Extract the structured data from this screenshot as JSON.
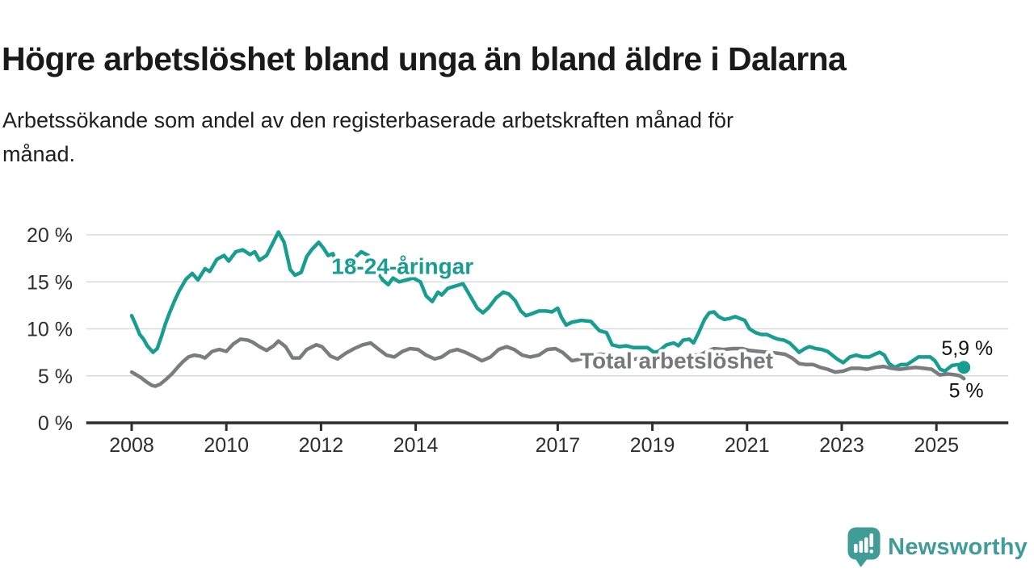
{
  "header": {
    "title": "Högre arbetslöshet bland unga än bland äldre i Dalarna",
    "subtitle_line1": "Arbetssökande som andel av den registerbaserade arbetskraften månad för",
    "subtitle_line2": "månad."
  },
  "chart_data": {
    "type": "line",
    "title": "Högre arbetslöshet bland unga än bland äldre i Dalarna",
    "xlabel": "",
    "ylabel": "",
    "grid": "horizontal",
    "x_axis": {
      "range": [
        2007.04,
        2026.52
      ],
      "ticks": [
        {
          "v": 2008,
          "label": "2008"
        },
        {
          "v": 2010,
          "label": "2010"
        },
        {
          "v": 2012,
          "label": "2012"
        },
        {
          "v": 2014,
          "label": "2014"
        },
        {
          "v": 2017,
          "label": "2017"
        },
        {
          "v": 2019,
          "label": "2019"
        },
        {
          "v": 2021,
          "label": "2021"
        },
        {
          "v": 2023,
          "label": "2023"
        },
        {
          "v": 2025,
          "label": "2025"
        }
      ]
    },
    "y_axis": {
      "range": [
        0,
        21
      ],
      "unit": "%",
      "ticks": [
        {
          "v": 0,
          "label": "0 %"
        },
        {
          "v": 5,
          "label": "5 %"
        },
        {
          "v": 10,
          "label": "10 %"
        },
        {
          "v": 15,
          "label": "15 %"
        },
        {
          "v": 20,
          "label": "20 %"
        }
      ]
    },
    "series": [
      {
        "name": "18-24-åringar",
        "color": "#189e90",
        "end_dot": true,
        "end_value_label": "5,9 %",
        "points": [
          [
            2008.0,
            11.4
          ],
          [
            2008.08,
            10.5
          ],
          [
            2008.17,
            9.4
          ],
          [
            2008.25,
            8.9
          ],
          [
            2008.33,
            8.2
          ],
          [
            2008.45,
            7.5
          ],
          [
            2008.54,
            7.9
          ],
          [
            2008.63,
            9.2
          ],
          [
            2008.71,
            10.5
          ],
          [
            2008.8,
            11.7
          ],
          [
            2008.9,
            12.9
          ],
          [
            2009.0,
            14.0
          ],
          [
            2009.15,
            15.3
          ],
          [
            2009.28,
            15.9
          ],
          [
            2009.4,
            15.2
          ],
          [
            2009.55,
            16.4
          ],
          [
            2009.65,
            16.1
          ],
          [
            2009.8,
            17.4
          ],
          [
            2009.95,
            17.8
          ],
          [
            2010.05,
            17.2
          ],
          [
            2010.2,
            18.2
          ],
          [
            2010.35,
            18.4
          ],
          [
            2010.5,
            17.9
          ],
          [
            2010.6,
            18.2
          ],
          [
            2010.7,
            17.3
          ],
          [
            2010.85,
            17.8
          ],
          [
            2011.0,
            19.3
          ],
          [
            2011.1,
            20.3
          ],
          [
            2011.22,
            19.2
          ],
          [
            2011.35,
            16.3
          ],
          [
            2011.45,
            15.7
          ],
          [
            2011.58,
            16.0
          ],
          [
            2011.7,
            17.7
          ],
          [
            2011.8,
            18.4
          ],
          [
            2011.95,
            19.2
          ],
          [
            2012.05,
            18.6
          ],
          [
            2012.15,
            17.8
          ],
          [
            2012.25,
            18.0
          ],
          [
            2012.4,
            16.0
          ],
          [
            2012.55,
            16.8
          ],
          [
            2012.7,
            17.5
          ],
          [
            2012.85,
            18.2
          ],
          [
            2013.0,
            17.8
          ],
          [
            2013.15,
            16.5
          ],
          [
            2013.3,
            15.2
          ],
          [
            2013.42,
            14.7
          ],
          [
            2013.52,
            15.4
          ],
          [
            2013.65,
            15.0
          ],
          [
            2013.8,
            15.2
          ],
          [
            2013.95,
            15.4
          ],
          [
            2014.1,
            15.0
          ],
          [
            2014.22,
            13.5
          ],
          [
            2014.35,
            12.9
          ],
          [
            2014.47,
            13.9
          ],
          [
            2014.55,
            13.6
          ],
          [
            2014.68,
            14.3
          ],
          [
            2014.8,
            14.5
          ],
          [
            2015.0,
            14.8
          ],
          [
            2015.15,
            13.5
          ],
          [
            2015.3,
            12.2
          ],
          [
            2015.42,
            11.7
          ],
          [
            2015.55,
            12.3
          ],
          [
            2015.7,
            13.3
          ],
          [
            2015.85,
            13.9
          ],
          [
            2015.97,
            13.7
          ],
          [
            2016.1,
            13.0
          ],
          [
            2016.22,
            11.9
          ],
          [
            2016.33,
            11.4
          ],
          [
            2016.45,
            11.6
          ],
          [
            2016.6,
            11.9
          ],
          [
            2016.75,
            11.9
          ],
          [
            2016.88,
            11.8
          ],
          [
            2017.0,
            12.2
          ],
          [
            2017.08,
            11.2
          ],
          [
            2017.18,
            10.4
          ],
          [
            2017.3,
            10.7
          ],
          [
            2017.5,
            10.9
          ],
          [
            2017.7,
            10.8
          ],
          [
            2017.88,
            9.8
          ],
          [
            2018.03,
            9.6
          ],
          [
            2018.15,
            8.3
          ],
          [
            2018.3,
            8.1
          ],
          [
            2018.45,
            8.2
          ],
          [
            2018.6,
            8.0
          ],
          [
            2018.75,
            8.0
          ],
          [
            2018.9,
            8.0
          ],
          [
            2019.03,
            7.5
          ],
          [
            2019.13,
            7.6
          ],
          [
            2019.3,
            8.3
          ],
          [
            2019.45,
            8.5
          ],
          [
            2019.55,
            8.2
          ],
          [
            2019.65,
            8.8
          ],
          [
            2019.78,
            8.9
          ],
          [
            2019.87,
            8.5
          ],
          [
            2019.97,
            9.5
          ],
          [
            2020.1,
            11.0
          ],
          [
            2020.2,
            11.7
          ],
          [
            2020.3,
            11.8
          ],
          [
            2020.4,
            11.3
          ],
          [
            2020.52,
            11.0
          ],
          [
            2020.63,
            11.1
          ],
          [
            2020.75,
            11.3
          ],
          [
            2020.85,
            11.1
          ],
          [
            2020.95,
            10.9
          ],
          [
            2021.05,
            10.0
          ],
          [
            2021.18,
            9.6
          ],
          [
            2021.3,
            9.4
          ],
          [
            2021.42,
            9.4
          ],
          [
            2021.55,
            9.1
          ],
          [
            2021.65,
            8.9
          ],
          [
            2021.78,
            8.8
          ],
          [
            2021.9,
            8.5
          ],
          [
            2022.02,
            7.9
          ],
          [
            2022.1,
            7.5
          ],
          [
            2022.22,
            7.9
          ],
          [
            2022.32,
            8.1
          ],
          [
            2022.45,
            7.9
          ],
          [
            2022.58,
            7.8
          ],
          [
            2022.7,
            7.6
          ],
          [
            2022.8,
            7.2
          ],
          [
            2022.9,
            6.8
          ],
          [
            2023.03,
            6.4
          ],
          [
            2023.17,
            7.0
          ],
          [
            2023.3,
            7.2
          ],
          [
            2023.45,
            7.0
          ],
          [
            2023.58,
            7.0
          ],
          [
            2023.7,
            7.3
          ],
          [
            2023.8,
            7.5
          ],
          [
            2023.9,
            7.2
          ],
          [
            2024.0,
            6.3
          ],
          [
            2024.12,
            5.9
          ],
          [
            2024.25,
            6.2
          ],
          [
            2024.38,
            6.2
          ],
          [
            2024.5,
            6.6
          ],
          [
            2024.62,
            7.0
          ],
          [
            2024.75,
            7.0
          ],
          [
            2024.87,
            7.0
          ],
          [
            2024.97,
            6.6
          ],
          [
            2025.08,
            5.7
          ],
          [
            2025.18,
            5.5
          ],
          [
            2025.33,
            6.1
          ],
          [
            2025.46,
            6.2
          ],
          [
            2025.58,
            5.9
          ]
        ]
      },
      {
        "name": "Total arbetslöshet",
        "color": "#7b7c7e",
        "end_dot": false,
        "end_value_label": "5 %",
        "points": [
          [
            2008.0,
            5.4
          ],
          [
            2008.1,
            5.1
          ],
          [
            2008.2,
            4.8
          ],
          [
            2008.3,
            4.4
          ],
          [
            2008.42,
            4.0
          ],
          [
            2008.5,
            3.9
          ],
          [
            2008.6,
            4.1
          ],
          [
            2008.72,
            4.6
          ],
          [
            2008.85,
            5.2
          ],
          [
            2008.97,
            5.9
          ],
          [
            2009.08,
            6.5
          ],
          [
            2009.2,
            7.0
          ],
          [
            2009.32,
            7.2
          ],
          [
            2009.45,
            7.1
          ],
          [
            2009.55,
            6.9
          ],
          [
            2009.7,
            7.6
          ],
          [
            2009.85,
            7.8
          ],
          [
            2010.0,
            7.6
          ],
          [
            2010.15,
            8.4
          ],
          [
            2010.3,
            8.9
          ],
          [
            2010.45,
            8.8
          ],
          [
            2010.55,
            8.6
          ],
          [
            2010.7,
            8.1
          ],
          [
            2010.85,
            7.7
          ],
          [
            2011.0,
            8.2
          ],
          [
            2011.1,
            8.7
          ],
          [
            2011.25,
            8.1
          ],
          [
            2011.4,
            6.9
          ],
          [
            2011.55,
            6.9
          ],
          [
            2011.7,
            7.8
          ],
          [
            2011.9,
            8.3
          ],
          [
            2012.02,
            8.1
          ],
          [
            2012.2,
            7.1
          ],
          [
            2012.35,
            6.8
          ],
          [
            2012.52,
            7.4
          ],
          [
            2012.7,
            7.9
          ],
          [
            2012.88,
            8.3
          ],
          [
            2013.05,
            8.5
          ],
          [
            2013.2,
            7.9
          ],
          [
            2013.38,
            7.2
          ],
          [
            2013.55,
            7.0
          ],
          [
            2013.72,
            7.6
          ],
          [
            2013.88,
            7.9
          ],
          [
            2014.05,
            7.8
          ],
          [
            2014.22,
            7.2
          ],
          [
            2014.4,
            6.8
          ],
          [
            2014.55,
            7.0
          ],
          [
            2014.72,
            7.6
          ],
          [
            2014.88,
            7.8
          ],
          [
            2015.05,
            7.5
          ],
          [
            2015.25,
            7.0
          ],
          [
            2015.4,
            6.6
          ],
          [
            2015.58,
            7.0
          ],
          [
            2015.75,
            7.8
          ],
          [
            2015.92,
            8.1
          ],
          [
            2016.08,
            7.8
          ],
          [
            2016.25,
            7.2
          ],
          [
            2016.42,
            7.0
          ],
          [
            2016.6,
            7.2
          ],
          [
            2016.78,
            7.8
          ],
          [
            2016.95,
            7.9
          ],
          [
            2017.1,
            7.5
          ],
          [
            2017.3,
            6.6
          ],
          [
            2017.5,
            6.8
          ],
          [
            2017.7,
            7.1
          ],
          [
            2017.9,
            7.3
          ],
          [
            2018.05,
            7.2
          ],
          [
            2018.25,
            6.8
          ],
          [
            2018.45,
            6.6
          ],
          [
            2018.65,
            6.8
          ],
          [
            2018.85,
            7.0
          ],
          [
            2019.05,
            6.9
          ],
          [
            2019.25,
            6.8
          ],
          [
            2019.45,
            6.9
          ],
          [
            2019.65,
            7.1
          ],
          [
            2019.85,
            7.2
          ],
          [
            2020.0,
            7.2
          ],
          [
            2020.15,
            7.6
          ],
          [
            2020.3,
            7.9
          ],
          [
            2020.5,
            7.8
          ],
          [
            2020.7,
            7.9
          ],
          [
            2020.9,
            7.9
          ],
          [
            2021.05,
            7.7
          ],
          [
            2021.25,
            7.6
          ],
          [
            2021.45,
            7.5
          ],
          [
            2021.65,
            7.4
          ],
          [
            2021.8,
            7.3
          ],
          [
            2021.95,
            6.9
          ],
          [
            2022.1,
            6.3
          ],
          [
            2022.25,
            6.2
          ],
          [
            2022.4,
            6.2
          ],
          [
            2022.55,
            5.9
          ],
          [
            2022.7,
            5.7
          ],
          [
            2022.86,
            5.4
          ],
          [
            2023.03,
            5.5
          ],
          [
            2023.2,
            5.8
          ],
          [
            2023.37,
            5.8
          ],
          [
            2023.54,
            5.7
          ],
          [
            2023.71,
            5.9
          ],
          [
            2023.88,
            6.0
          ],
          [
            2024.05,
            5.8
          ],
          [
            2024.22,
            5.7
          ],
          [
            2024.39,
            5.8
          ],
          [
            2024.56,
            5.9
          ],
          [
            2024.73,
            5.8
          ],
          [
            2024.9,
            5.7
          ],
          [
            2025.07,
            5.1
          ],
          [
            2025.24,
            5.2
          ],
          [
            2025.41,
            5.1
          ],
          [
            2025.5,
            5.0
          ],
          [
            2025.58,
            4.7
          ]
        ]
      }
    ],
    "annotations": [
      {
        "text": "18-24-åringar",
        "x": 2012.22,
        "y": 16.65,
        "color": "#189e90",
        "size": 28,
        "weight": "bold",
        "anchor": "start",
        "halo": 9
      },
      {
        "text": "Total arbetslöshet",
        "x": 2017.47,
        "y": 6.6,
        "color": "#77787a",
        "size": 28,
        "weight": "bold",
        "anchor": "start",
        "halo": 9
      },
      {
        "text": "5,9 %",
        "x": 2025.65,
        "y": 7.9,
        "color": "#111111",
        "size": 25,
        "weight": "normal",
        "anchor": "middle",
        "halo": 6
      },
      {
        "text": "5 %",
        "x": 2025.63,
        "y": 3.4,
        "color": "#111111",
        "size": 25,
        "weight": "normal",
        "anchor": "middle",
        "halo": 6
      }
    ]
  },
  "footer": {
    "brand": "Newsworthy",
    "brand_color": "#3f9c96"
  }
}
